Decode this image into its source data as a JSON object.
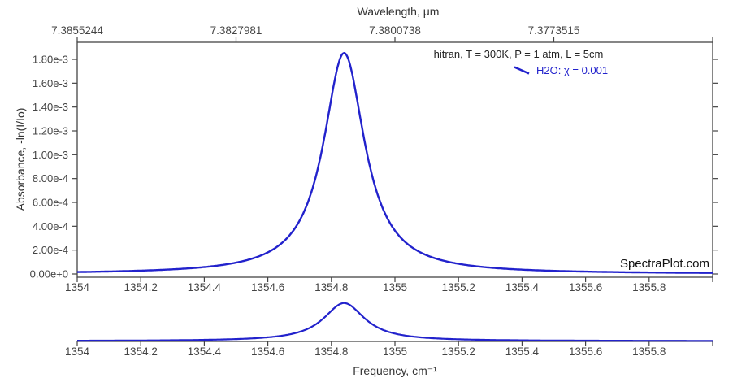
{
  "page": {
    "background": "#ffffff",
    "text_color": "#444444",
    "axis_color": "#444444"
  },
  "chart_data": {
    "type": "line",
    "source_site": "SpectraPlot.com",
    "series": [
      {
        "name": "H2O: χ = 0.001",
        "model": "lorentzian",
        "center_cm": 1354.84,
        "hwhm_cm": 0.079,
        "peak_absorbance": 0.001853,
        "color": "#2222cc"
      }
    ],
    "x_axis": {
      "label": "Frequency, cm⁻¹",
      "range": [
        1354,
        1356
      ],
      "ticks": [
        1354,
        1354.2,
        1354.4,
        1354.6,
        1354.8,
        1355,
        1355.2,
        1355.4,
        1355.6,
        1355.8
      ],
      "tick_labels": [
        "1354",
        "1354.2",
        "1354.4",
        "1354.6",
        "1354.8",
        "1355",
        "1355.2",
        "1355.4",
        "1355.6",
        "1355.8"
      ]
    },
    "top_axis": {
      "label": "Wavelength, μm",
      "tick_labels": [
        "7.3855244",
        "7.3827981",
        "7.3800738",
        "7.3773515"
      ],
      "tick_positions_cm": [
        1354.0,
        1354.5,
        1355.0,
        1355.5
      ]
    },
    "y_axis": {
      "label": "Absorbance, -ln(I/Io)",
      "range": [
        -2.7e-05,
        0.0019432
      ],
      "ticks": [
        0,
        0.0002,
        0.0004,
        0.0006,
        0.0008,
        0.001,
        0.0012,
        0.0014,
        0.0016,
        0.0018
      ],
      "tick_labels": [
        "0.00e+0",
        "2.00e-4",
        "4.00e-4",
        "6.00e-4",
        "8.00e-4",
        "1.00e-3",
        "1.20e-3",
        "1.40e-3",
        "1.60e-3",
        "1.80e-3"
      ]
    },
    "legend": {
      "title": "hitran, T = 300K, P = 1 atm, L = 5cm",
      "entries": [
        {
          "label": "H2O: χ = 0.001",
          "color": "#2222cc"
        }
      ]
    },
    "watermark": "SpectraPlot.com",
    "rangeslider": {
      "range": [
        1354,
        1356
      ],
      "tick_labels": [
        "1354",
        "1354.2",
        "1354.4",
        "1354.6",
        "1354.8",
        "1355",
        "1355.2",
        "1355.4",
        "1355.6",
        "1355.8"
      ]
    }
  }
}
